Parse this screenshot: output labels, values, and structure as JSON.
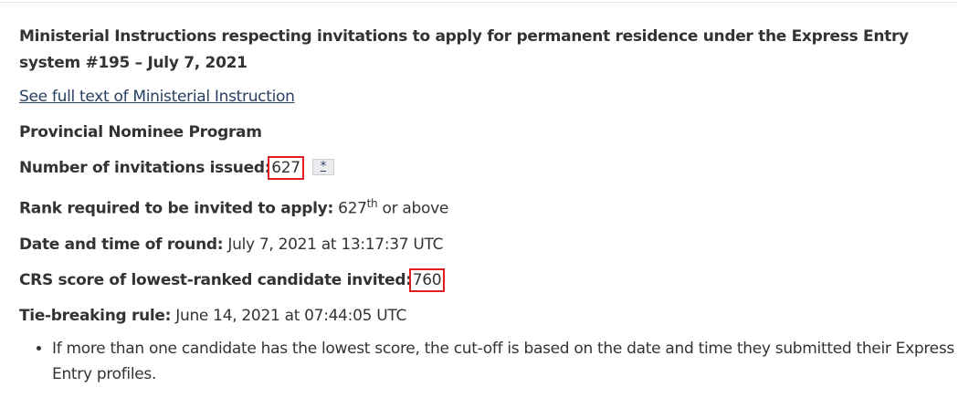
{
  "heading": "Ministerial Instructions respecting invitations to apply for permanent residence under the Express Entry system #195 – July 7, 2021",
  "full_text_link": "See full text of Ministerial Instruction",
  "program": "Provincial Nominee Program",
  "invitations": {
    "label": "Number of invitations issued:",
    "value": "627",
    "footnote": "*"
  },
  "rank": {
    "label": "Rank required to be invited to apply:",
    "value": "627",
    "sup": "th",
    "suffix": " or above"
  },
  "date": {
    "label": "Date and time of round:",
    "value": "July 7, 2021 at 13:17:37 UTC"
  },
  "crs": {
    "label": "CRS score of lowest-ranked candidate invited:",
    "value": "760"
  },
  "tie": {
    "label": "Tie-breaking rule:",
    "value": "June 14, 2021 at 07:44:05 UTC"
  },
  "bullets": [
    "If more than one candidate has the lowest score, the cut-off is based on the date and time they submitted their Express Entry profiles."
  ],
  "highlight_color": "#e02020"
}
